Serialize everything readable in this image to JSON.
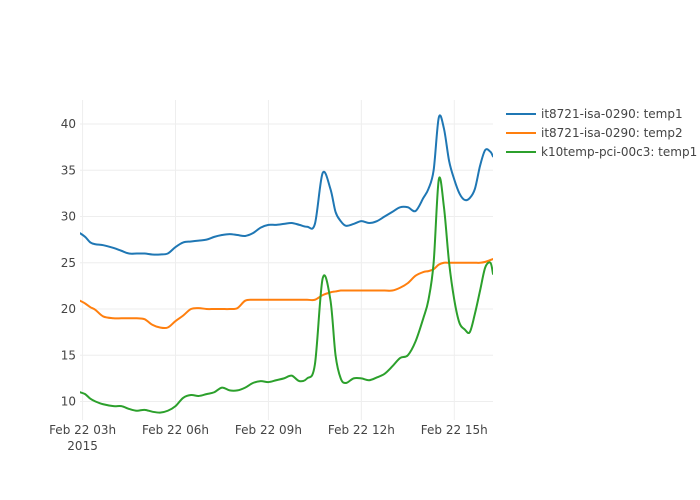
{
  "chart_data": {
    "type": "line",
    "title": "",
    "xlabel": "",
    "ylabel": "",
    "x_ticks": [
      {
        "x": "2015-02-22 03:00",
        "label": "Feb 22 03h",
        "sublabel": "2015"
      },
      {
        "x": "2015-02-22 06:00",
        "label": "Feb 22 06h",
        "sublabel": ""
      },
      {
        "x": "2015-02-22 09:00",
        "label": "Feb 22 09h",
        "sublabel": ""
      },
      {
        "x": "2015-02-22 12:00",
        "label": "Feb 22 12h",
        "sublabel": ""
      },
      {
        "x": "2015-02-22 15:00",
        "label": "Feb 22 15h",
        "sublabel": ""
      }
    ],
    "y_ticks": [
      10,
      15,
      20,
      25,
      30,
      35,
      40
    ],
    "xlim": [
      "2015-02-22 02:55",
      "2015-02-22 16:15"
    ],
    "ylim": [
      8,
      42.6
    ],
    "grid": true,
    "legend_position": "top-right",
    "x": [
      "2015-02-22 02:55",
      "2015-02-22 03:05",
      "2015-02-22 03:15",
      "2015-02-22 03:25",
      "2015-02-22 03:40",
      "2015-02-22 04:00",
      "2015-02-22 04:15",
      "2015-02-22 04:30",
      "2015-02-22 04:45",
      "2015-02-22 05:00",
      "2015-02-22 05:15",
      "2015-02-22 05:30",
      "2015-02-22 05:45",
      "2015-02-22 06:00",
      "2015-02-22 06:15",
      "2015-02-22 06:30",
      "2015-02-22 06:45",
      "2015-02-22 07:00",
      "2015-02-22 07:15",
      "2015-02-22 07:30",
      "2015-02-22 07:45",
      "2015-02-22 08:00",
      "2015-02-22 08:15",
      "2015-02-22 08:30",
      "2015-02-22 08:45",
      "2015-02-22 09:00",
      "2015-02-22 09:15",
      "2015-02-22 09:30",
      "2015-02-22 09:45",
      "2015-02-22 10:00",
      "2015-02-22 10:15",
      "2015-02-22 10:30",
      "2015-02-22 10:45",
      "2015-02-22 11:00",
      "2015-02-22 11:10",
      "2015-02-22 11:20",
      "2015-02-22 11:30",
      "2015-02-22 11:45",
      "2015-02-22 12:00",
      "2015-02-22 12:15",
      "2015-02-22 12:30",
      "2015-02-22 12:45",
      "2015-02-22 13:00",
      "2015-02-22 13:15",
      "2015-02-22 13:30",
      "2015-02-22 13:45",
      "2015-02-22 14:00",
      "2015-02-22 14:10",
      "2015-02-22 14:20",
      "2015-02-22 14:30",
      "2015-02-22 14:40",
      "2015-02-22 14:50",
      "2015-02-22 15:00",
      "2015-02-22 15:10",
      "2015-02-22 15:20",
      "2015-02-22 15:30",
      "2015-02-22 15:40",
      "2015-02-22 15:50",
      "2015-02-22 16:00",
      "2015-02-22 16:10",
      "2015-02-22 16:15"
    ],
    "series": [
      {
        "name": "it8721-isa-0290: temp1",
        "color": "#1f77b4",
        "values": [
          28.2,
          27.8,
          27.2,
          27.0,
          26.9,
          26.6,
          26.3,
          26.0,
          26.0,
          26.0,
          25.9,
          25.9,
          26.0,
          26.7,
          27.2,
          27.3,
          27.4,
          27.5,
          27.8,
          28.0,
          28.1,
          28.0,
          27.9,
          28.2,
          28.8,
          29.1,
          29.1,
          29.2,
          29.3,
          29.1,
          28.9,
          29.2,
          34.7,
          33.0,
          30.5,
          29.5,
          29.0,
          29.2,
          29.5,
          29.3,
          29.5,
          30.0,
          30.5,
          31.0,
          31.0,
          30.6,
          32.0,
          33.0,
          35.0,
          40.7,
          39.5,
          36.0,
          34.0,
          32.5,
          31.8,
          32.0,
          33.0,
          35.5,
          37.2,
          37.0,
          36.5
        ]
      },
      {
        "name": "it8721-isa-0290: temp2",
        "color": "#ff7f0e",
        "values": [
          20.9,
          20.6,
          20.2,
          19.9,
          19.2,
          19.0,
          19.0,
          19.0,
          19.0,
          18.9,
          18.3,
          18.0,
          18.0,
          18.7,
          19.3,
          20.0,
          20.1,
          20.0,
          20.0,
          20.0,
          20.0,
          20.1,
          20.9,
          21.0,
          21.0,
          21.0,
          21.0,
          21.0,
          21.0,
          21.0,
          21.0,
          21.0,
          21.5,
          21.8,
          21.9,
          22.0,
          22.0,
          22.0,
          22.0,
          22.0,
          22.0,
          22.0,
          22.0,
          22.3,
          22.8,
          23.6,
          24.0,
          24.1,
          24.3,
          24.8,
          25.0,
          25.0,
          25.0,
          25.0,
          25.0,
          25.0,
          25.0,
          25.0,
          25.1,
          25.3,
          25.4
        ]
      },
      {
        "name": "k10temp-pci-00c3: temp1",
        "color": "#2ca02c",
        "values": [
          11.0,
          10.8,
          10.3,
          10.0,
          9.7,
          9.5,
          9.5,
          9.2,
          9.0,
          9.1,
          8.9,
          8.8,
          9.0,
          9.5,
          10.4,
          10.7,
          10.6,
          10.8,
          11.0,
          11.5,
          11.2,
          11.2,
          11.5,
          12.0,
          12.2,
          12.1,
          12.3,
          12.5,
          12.8,
          12.2,
          12.5,
          14.0,
          23.3,
          21.0,
          15.0,
          12.5,
          12.0,
          12.5,
          12.5,
          12.3,
          12.6,
          13.0,
          13.8,
          14.7,
          15.0,
          16.5,
          19.0,
          21.0,
          25.0,
          34.0,
          31.0,
          25.0,
          21.0,
          18.5,
          17.8,
          17.5,
          19.5,
          22.0,
          24.5,
          25.0,
          23.8
        ]
      }
    ]
  }
}
